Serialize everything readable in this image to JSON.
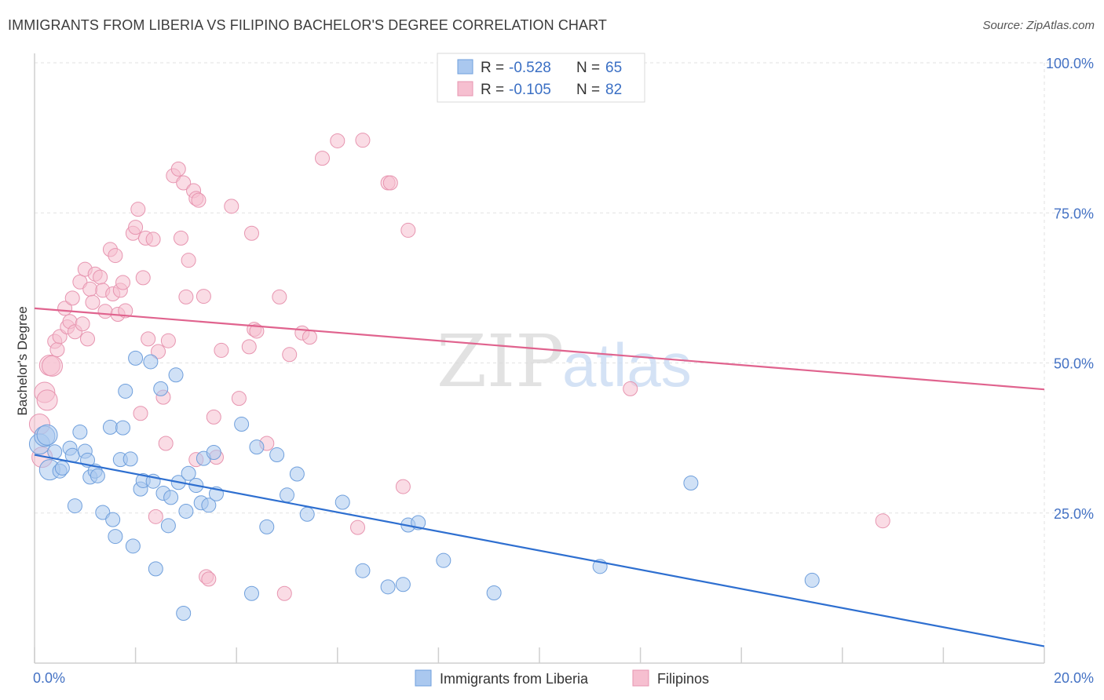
{
  "title": "IMMIGRANTS FROM LIBERIA VS FILIPINO BACHELOR'S DEGREE CORRELATION CHART",
  "source": "Source: ZipAtlas.com",
  "watermark": {
    "zip": "ZIP",
    "atlas": "atlas"
  },
  "colors": {
    "blue_fill": "#aac8ef",
    "blue_stroke": "#6f9fdc",
    "blue_line": "#2e6fd0",
    "pink_fill": "#f6bfd0",
    "pink_stroke": "#e795b0",
    "pink_line": "#e0638e",
    "grid": "#e2e2e2",
    "tick": "#4472c4"
  },
  "legend": {
    "rows": [
      {
        "r_label": "R = ",
        "r_value": "-0.528",
        "n_label": "N = ",
        "n_value": "65"
      },
      {
        "r_label": "R = ",
        "r_value": "-0.105",
        "n_label": "N = ",
        "n_value": "82"
      }
    ]
  },
  "chart_data": {
    "type": "scatter",
    "title": "IMMIGRANTS FROM LIBERIA VS FILIPINO BACHELOR'S DEGREE CORRELATION CHART",
    "xlabel": "",
    "ylabel": "Bachelor's Degree",
    "xlim": [
      0,
      20
    ],
    "ylim": [
      0,
      100
    ],
    "x_tick_labels": [
      "0.0%",
      "20.0%"
    ],
    "y_ticks": [
      25,
      50,
      75,
      100
    ],
    "y_tick_labels": [
      "25.0%",
      "50.0%",
      "75.0%",
      "100.0%"
    ],
    "grid": true,
    "legend_position": "top-center",
    "series": [
      {
        "name": "Immigrants from Liberia",
        "r": -0.528,
        "n": 65,
        "trend": {
          "x": [
            0,
            20
          ],
          "y": [
            34.7,
            2.8
          ]
        },
        "points": [
          [
            0.1,
            36.5
          ],
          [
            0.2,
            37.8
          ],
          [
            0.25,
            38.0
          ],
          [
            0.3,
            32.2
          ],
          [
            0.4,
            35.2
          ],
          [
            0.5,
            32.0
          ],
          [
            0.55,
            32.5
          ],
          [
            0.7,
            35.8
          ],
          [
            0.75,
            34.6
          ],
          [
            0.8,
            26.2
          ],
          [
            0.9,
            38.5
          ],
          [
            1.0,
            35.3
          ],
          [
            1.05,
            33.8
          ],
          [
            1.1,
            31.0
          ],
          [
            1.2,
            32.0
          ],
          [
            1.25,
            31.2
          ],
          [
            1.35,
            25.1
          ],
          [
            1.5,
            39.3
          ],
          [
            1.55,
            23.9
          ],
          [
            1.6,
            21.1
          ],
          [
            1.7,
            33.9
          ],
          [
            1.75,
            39.2
          ],
          [
            1.8,
            45.3
          ],
          [
            1.9,
            34.0
          ],
          [
            1.95,
            19.5
          ],
          [
            2.0,
            50.8
          ],
          [
            2.1,
            29.0
          ],
          [
            2.15,
            30.4
          ],
          [
            2.3,
            50.2
          ],
          [
            2.35,
            30.3
          ],
          [
            2.4,
            15.7
          ],
          [
            2.5,
            45.7
          ],
          [
            2.55,
            28.3
          ],
          [
            2.65,
            22.9
          ],
          [
            2.7,
            27.6
          ],
          [
            2.8,
            48.0
          ],
          [
            2.85,
            30.1
          ],
          [
            2.95,
            8.3
          ],
          [
            3.0,
            25.3
          ],
          [
            3.05,
            31.6
          ],
          [
            3.2,
            29.6
          ],
          [
            3.3,
            26.7
          ],
          [
            3.35,
            34.1
          ],
          [
            3.45,
            26.3
          ],
          [
            3.55,
            35.1
          ],
          [
            3.6,
            28.2
          ],
          [
            4.1,
            39.8
          ],
          [
            4.3,
            11.6
          ],
          [
            4.6,
            22.7
          ],
          [
            4.8,
            34.7
          ],
          [
            5.0,
            28.0
          ],
          [
            5.2,
            31.5
          ],
          [
            5.4,
            24.8
          ],
          [
            6.1,
            26.8
          ],
          [
            6.5,
            15.4
          ],
          [
            7.0,
            12.7
          ],
          [
            7.3,
            13.1
          ],
          [
            7.4,
            23.0
          ],
          [
            7.6,
            23.4
          ],
          [
            8.1,
            17.1
          ],
          [
            9.1,
            11.7
          ],
          [
            11.2,
            16.1
          ],
          [
            13.0,
            30.0
          ],
          [
            15.4,
            13.8
          ],
          [
            4.4,
            36.0
          ]
        ]
      },
      {
        "name": "Filipinos",
        "r": -0.105,
        "n": 82,
        "trend": {
          "x": [
            0,
            20
          ],
          "y": [
            59.1,
            45.6
          ]
        },
        "points": [
          [
            0.1,
            39.8
          ],
          [
            0.15,
            34.3
          ],
          [
            0.2,
            45.1
          ],
          [
            0.25,
            43.8
          ],
          [
            0.3,
            49.6
          ],
          [
            0.35,
            49.5
          ],
          [
            0.4,
            53.6
          ],
          [
            0.45,
            52.2
          ],
          [
            0.5,
            54.4
          ],
          [
            0.6,
            59.1
          ],
          [
            0.65,
            56.0
          ],
          [
            0.7,
            56.9
          ],
          [
            0.75,
            60.8
          ],
          [
            0.8,
            55.2
          ],
          [
            0.9,
            63.5
          ],
          [
            0.95,
            56.5
          ],
          [
            1.0,
            65.6
          ],
          [
            1.05,
            54.0
          ],
          [
            1.1,
            62.3
          ],
          [
            1.15,
            60.1
          ],
          [
            1.2,
            64.8
          ],
          [
            1.3,
            64.3
          ],
          [
            1.35,
            62.1
          ],
          [
            1.4,
            58.6
          ],
          [
            1.5,
            68.9
          ],
          [
            1.55,
            61.5
          ],
          [
            1.6,
            67.9
          ],
          [
            1.65,
            58.1
          ],
          [
            1.7,
            62.1
          ],
          [
            1.75,
            63.4
          ],
          [
            1.8,
            58.7
          ],
          [
            1.95,
            71.6
          ],
          [
            2.0,
            72.6
          ],
          [
            2.05,
            75.6
          ],
          [
            2.1,
            41.6
          ],
          [
            2.15,
            64.2
          ],
          [
            2.2,
            70.8
          ],
          [
            2.25,
            54.0
          ],
          [
            2.35,
            70.6
          ],
          [
            2.4,
            24.4
          ],
          [
            2.45,
            51.9
          ],
          [
            2.55,
            44.3
          ],
          [
            2.6,
            36.6
          ],
          [
            2.65,
            53.7
          ],
          [
            2.75,
            81.2
          ],
          [
            2.85,
            82.3
          ],
          [
            2.9,
            70.8
          ],
          [
            2.95,
            80.0
          ],
          [
            3.0,
            61.0
          ],
          [
            3.05,
            67.1
          ],
          [
            3.15,
            78.7
          ],
          [
            3.2,
            77.4
          ],
          [
            3.25,
            77.1
          ],
          [
            3.35,
            61.1
          ],
          [
            3.4,
            14.4
          ],
          [
            3.45,
            14.0
          ],
          [
            3.55,
            41.0
          ],
          [
            3.6,
            34.3
          ],
          [
            3.7,
            52.1
          ],
          [
            3.9,
            76.1
          ],
          [
            4.05,
            44.1
          ],
          [
            4.25,
            52.7
          ],
          [
            4.3,
            71.6
          ],
          [
            4.35,
            55.6
          ],
          [
            4.4,
            55.3
          ],
          [
            4.6,
            36.6
          ],
          [
            4.85,
            61.0
          ],
          [
            4.95,
            11.6
          ],
          [
            5.05,
            51.4
          ],
          [
            5.3,
            55.0
          ],
          [
            5.45,
            54.3
          ],
          [
            5.7,
            84.1
          ],
          [
            6.0,
            87.0
          ],
          [
            6.4,
            22.6
          ],
          [
            6.5,
            87.1
          ],
          [
            7.0,
            80.0
          ],
          [
            7.05,
            80.0
          ],
          [
            7.3,
            29.4
          ],
          [
            7.4,
            72.1
          ],
          [
            11.8,
            45.7
          ],
          [
            16.8,
            23.7
          ],
          [
            3.2,
            33.9
          ]
        ]
      }
    ]
  }
}
